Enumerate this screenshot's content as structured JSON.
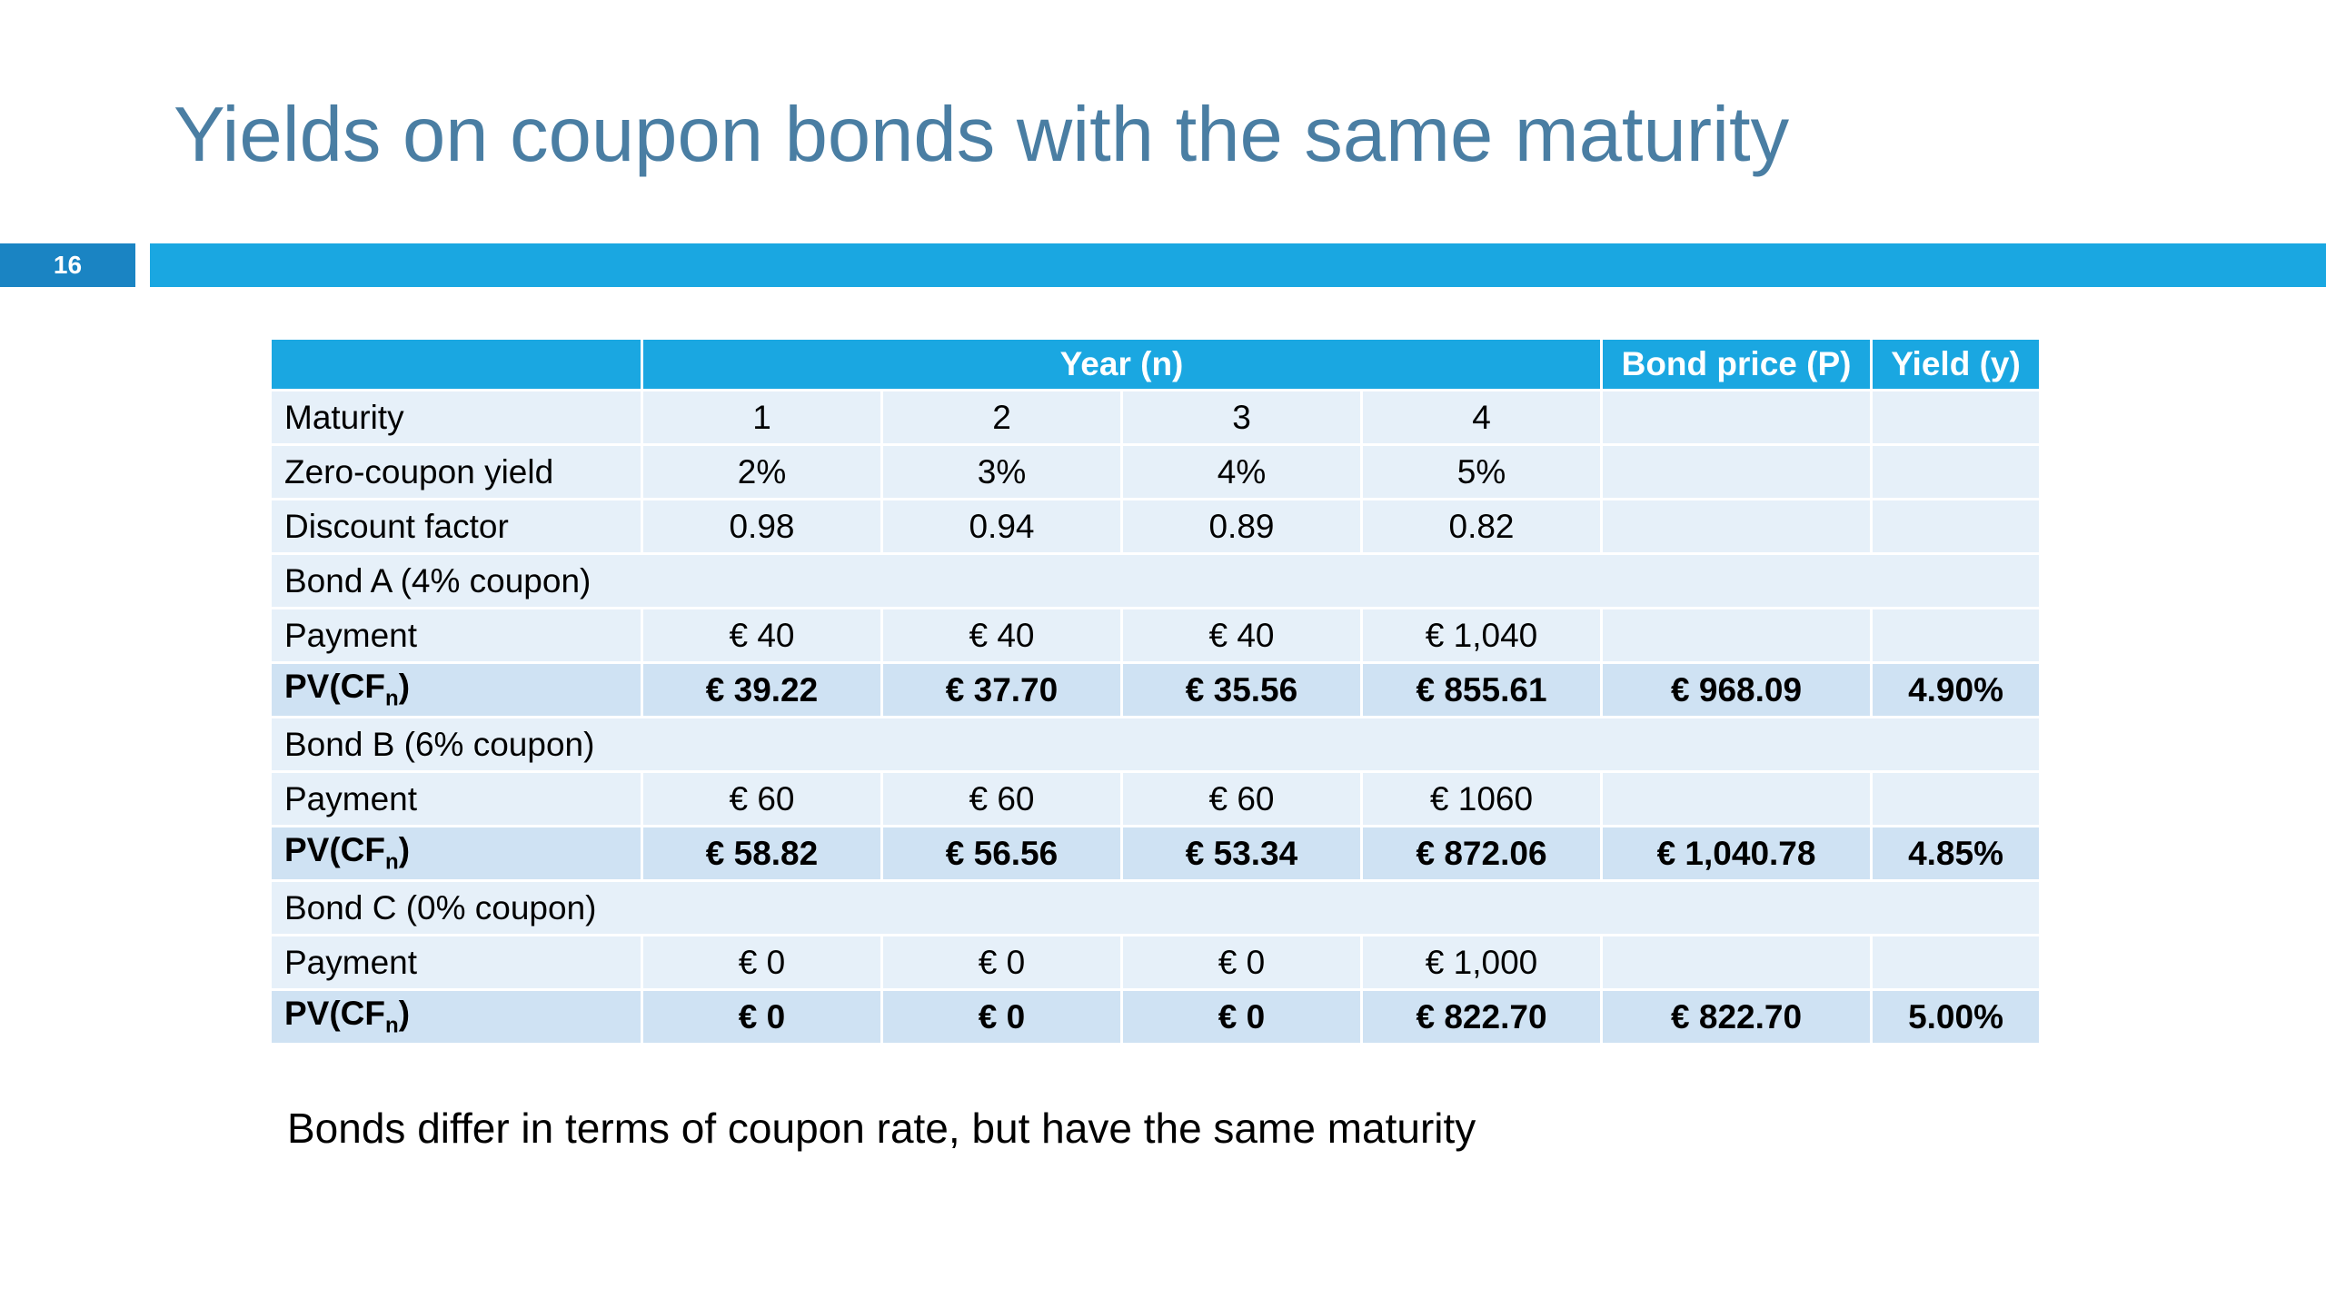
{
  "slide": {
    "title": "Yields on coupon bonds with the same maturity",
    "number": "16",
    "footnote": "Bonds differ in terms of coupon rate, but have the same maturity"
  },
  "colors": {
    "title": "#4a7ea3",
    "accent": "#1aa7e1",
    "slide_number_bg": "#1a84c3",
    "row_light": "#e6f0f9",
    "row_dark": "#cfe2f3"
  },
  "table": {
    "headers": {
      "blank": "",
      "year": "Year (n)",
      "price": "Bond price (P)",
      "yield": "Yield (y)"
    },
    "rows": [
      {
        "type": "data",
        "label": "Maturity",
        "values": [
          "1",
          "2",
          "3",
          "4"
        ],
        "price": "",
        "yield": ""
      },
      {
        "type": "data",
        "label": "Zero-coupon yield",
        "values": [
          "2%",
          "3%",
          "4%",
          "5%"
        ],
        "price": "",
        "yield": ""
      },
      {
        "type": "data",
        "label": "Discount factor",
        "values": [
          "0.98",
          "0.94",
          "0.89",
          "0.82"
        ],
        "price": "",
        "yield": ""
      },
      {
        "type": "section",
        "label": "Bond A (4% coupon)"
      },
      {
        "type": "data",
        "label": "Payment",
        "values": [
          "€ 40",
          "€ 40",
          "€ 40",
          "€ 1,040"
        ],
        "price": "",
        "yield": ""
      },
      {
        "type": "pv",
        "label": "PV(CF",
        "label_sub": "n",
        "label_end": ")",
        "values": [
          "€ 39.22",
          "€ 37.70",
          "€ 35.56",
          "€ 855.61"
        ],
        "price": "€ 968.09",
        "yield": "4.90%"
      },
      {
        "type": "section",
        "label": "Bond B (6% coupon)"
      },
      {
        "type": "data",
        "label": "Payment",
        "values": [
          "€ 60",
          "€ 60",
          "€ 60",
          "€ 1060"
        ],
        "price": "",
        "yield": ""
      },
      {
        "type": "pv",
        "label": "PV(CF",
        "label_sub": "n",
        "label_end": ")",
        "values": [
          "€ 58.82",
          "€ 56.56",
          "€ 53.34",
          "€ 872.06"
        ],
        "price": "€ 1,040.78",
        "yield": "4.85%"
      },
      {
        "type": "section",
        "label": "Bond C (0% coupon)"
      },
      {
        "type": "data",
        "label": "Payment",
        "values": [
          "€ 0",
          "€ 0",
          "€ 0",
          "€ 1,000"
        ],
        "price": "",
        "yield": ""
      },
      {
        "type": "pv",
        "label": "PV(CF",
        "label_sub": "n",
        "label_end": ")",
        "values": [
          "€ 0",
          "€ 0",
          "€ 0",
          "€ 822.70"
        ],
        "price": "€ 822.70",
        "yield": "5.00%"
      }
    ]
  }
}
